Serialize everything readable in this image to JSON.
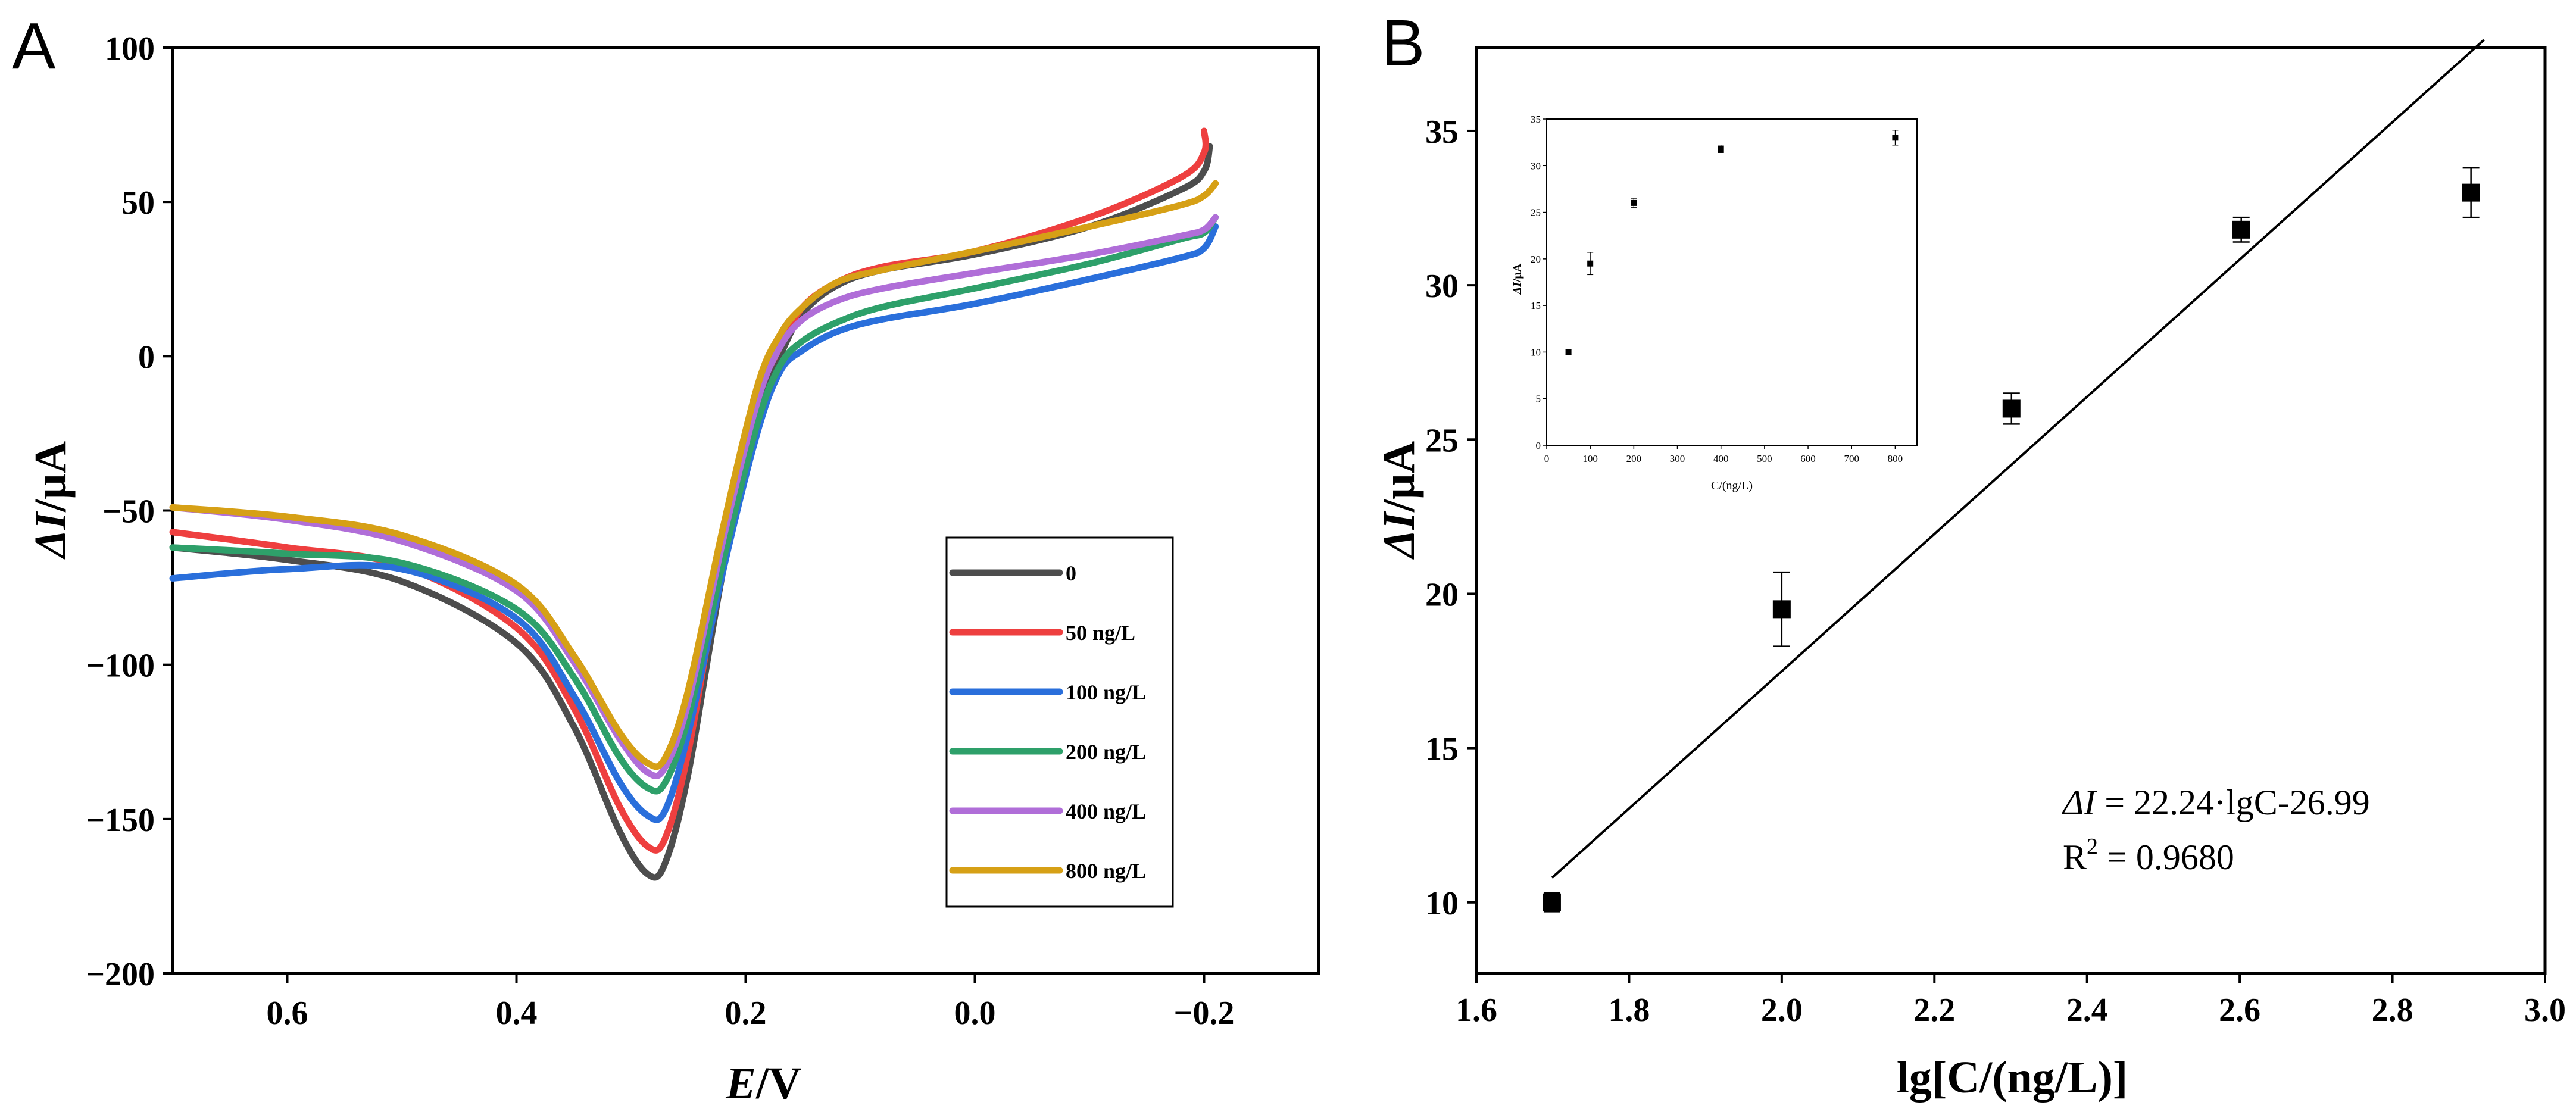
{
  "chart_data": [
    {
      "panel": "A",
      "type": "line",
      "xlabel_var": "E",
      "xlabel_unit": "/V",
      "ylabel_var": "ΔI",
      "ylabel_unit": "/μA",
      "xlim": [
        0.7,
        -0.3
      ],
      "ylim": [
        -200,
        100
      ],
      "x_reversed": true,
      "xticks": [
        0.6,
        0.4,
        0.2,
        0.0,
        -0.2
      ],
      "xtick_labels": [
        "0.6",
        "0.4",
        "0.2",
        "0.0",
        "−0.2"
      ],
      "yticks": [
        100,
        50,
        0,
        -50,
        -100,
        -150,
        -200
      ],
      "ytick_labels": [
        "100",
        "50",
        "0",
        "−50",
        "−100",
        "−150",
        "−200"
      ],
      "legend_position": "bottom-right",
      "series": [
        {
          "name": "0",
          "color": "#4d4d4d",
          "points": [
            [
              0.7,
              -62
            ],
            [
              0.6,
              -66
            ],
            [
              0.5,
              -73
            ],
            [
              0.4,
              -93
            ],
            [
              0.35,
              -120
            ],
            [
              0.31,
              -154
            ],
            [
              0.285,
              -168
            ],
            [
              0.27,
              -164
            ],
            [
              0.25,
              -135
            ],
            [
              0.22,
              -70
            ],
            [
              0.19,
              -20
            ],
            [
              0.17,
              0
            ],
            [
              0.15,
              14
            ],
            [
              0.12,
              23
            ],
            [
              0.08,
              28
            ],
            [
              0.0,
              33
            ],
            [
              -0.1,
              42
            ],
            [
              -0.18,
              54
            ],
            [
              -0.2,
              60
            ],
            [
              -0.205,
              68
            ]
          ]
        },
        {
          "name": "50 ng/L",
          "color": "#ee3f3f",
          "points": [
            [
              0.7,
              -57
            ],
            [
              0.6,
              -62
            ],
            [
              0.5,
              -68
            ],
            [
              0.4,
              -88
            ],
            [
              0.35,
              -114
            ],
            [
              0.31,
              -146
            ],
            [
              0.285,
              -159
            ],
            [
              0.27,
              -156
            ],
            [
              0.25,
              -128
            ],
            [
              0.22,
              -65
            ],
            [
              0.19,
              -15
            ],
            [
              0.17,
              3
            ],
            [
              0.15,
              16
            ],
            [
              0.12,
              24
            ],
            [
              0.08,
              29
            ],
            [
              0.0,
              34
            ],
            [
              -0.1,
              45
            ],
            [
              -0.18,
              58
            ],
            [
              -0.2,
              66
            ],
            [
              -0.2,
              73
            ]
          ]
        },
        {
          "name": "100 ng/L",
          "color": "#2a6fdb",
          "points": [
            [
              0.7,
              -72
            ],
            [
              0.6,
              -69
            ],
            [
              0.5,
              -69
            ],
            [
              0.4,
              -85
            ],
            [
              0.35,
              -110
            ],
            [
              0.31,
              -138
            ],
            [
              0.285,
              -149
            ],
            [
              0.27,
              -147
            ],
            [
              0.25,
              -122
            ],
            [
              0.22,
              -70
            ],
            [
              0.19,
              -25
            ],
            [
              0.17,
              -5
            ],
            [
              0.15,
              2
            ],
            [
              0.12,
              8
            ],
            [
              0.08,
              12
            ],
            [
              0.0,
              17
            ],
            [
              -0.1,
              25
            ],
            [
              -0.18,
              32
            ],
            [
              -0.2,
              35
            ],
            [
              -0.21,
              42
            ]
          ]
        },
        {
          "name": "200 ng/L",
          "color": "#2ea06a",
          "points": [
            [
              0.7,
              -62
            ],
            [
              0.6,
              -64
            ],
            [
              0.5,
              -67
            ],
            [
              0.4,
              -82
            ],
            [
              0.35,
              -104
            ],
            [
              0.31,
              -130
            ],
            [
              0.285,
              -140
            ],
            [
              0.27,
              -138
            ],
            [
              0.25,
              -117
            ],
            [
              0.22,
              -67
            ],
            [
              0.19,
              -22
            ],
            [
              0.17,
              -3
            ],
            [
              0.15,
              5
            ],
            [
              0.12,
              11
            ],
            [
              0.08,
              16
            ],
            [
              0.0,
              22
            ],
            [
              -0.1,
              30
            ],
            [
              -0.18,
              38
            ],
            [
              -0.2,
              40
            ],
            [
              -0.21,
              45
            ]
          ]
        },
        {
          "name": "400 ng/L",
          "color": "#b06ed8",
          "points": [
            [
              0.7,
              -49
            ],
            [
              0.6,
              -53
            ],
            [
              0.5,
              -60
            ],
            [
              0.4,
              -76
            ],
            [
              0.35,
              -99
            ],
            [
              0.31,
              -124
            ],
            [
              0.285,
              -135
            ],
            [
              0.27,
              -133
            ],
            [
              0.25,
              -112
            ],
            [
              0.22,
              -60
            ],
            [
              0.19,
              -15
            ],
            [
              0.17,
              3
            ],
            [
              0.15,
              12
            ],
            [
              0.12,
              18
            ],
            [
              0.08,
              22
            ],
            [
              0.0,
              27
            ],
            [
              -0.1,
              33
            ],
            [
              -0.18,
              39
            ],
            [
              -0.2,
              41
            ],
            [
              -0.21,
              45
            ]
          ]
        },
        {
          "name": "800 ng/L",
          "color": "#d6a016",
          "points": [
            [
              0.7,
              -49
            ],
            [
              0.6,
              -52
            ],
            [
              0.5,
              -58
            ],
            [
              0.4,
              -74
            ],
            [
              0.35,
              -97
            ],
            [
              0.31,
              -122
            ],
            [
              0.285,
              -132
            ],
            [
              0.27,
              -130
            ],
            [
              0.25,
              -108
            ],
            [
              0.22,
              -56
            ],
            [
              0.19,
              -10
            ],
            [
              0.17,
              7
            ],
            [
              0.15,
              16
            ],
            [
              0.12,
              24
            ],
            [
              0.08,
              28
            ],
            [
              0.0,
              34
            ],
            [
              -0.1,
              42
            ],
            [
              -0.18,
              49
            ],
            [
              -0.2,
              52
            ],
            [
              -0.21,
              56
            ]
          ]
        }
      ]
    },
    {
      "panel": "B",
      "type": "scatter",
      "xlabel": "lg[C/(ng/L)]",
      "ylabel_var": "ΔI",
      "ylabel_unit": "/μA",
      "xlim": [
        1.6,
        3.0
      ],
      "ylim": [
        7.7,
        37.7
      ],
      "xticks": [
        1.6,
        1.8,
        2.0,
        2.2,
        2.4,
        2.6,
        2.8,
        3.0
      ],
      "xtick_labels": [
        "1.6",
        "1.8",
        "2.0",
        "2.2",
        "2.4",
        "2.6",
        "2.8",
        "3.0"
      ],
      "yticks": [
        10,
        15,
        20,
        25,
        30,
        35
      ],
      "ytick_labels": [
        "10",
        "15",
        "20",
        "25",
        "30",
        "35"
      ],
      "points": [
        {
          "x": 1.699,
          "y": 10.0,
          "err": 0.3
        },
        {
          "x": 2.0,
          "y": 19.5,
          "err": 1.2
        },
        {
          "x": 2.301,
          "y": 26.0,
          "err": 0.5
        },
        {
          "x": 2.602,
          "y": 31.8,
          "err": 0.4
        },
        {
          "x": 2.903,
          "y": 33.0,
          "err": 0.8
        }
      ],
      "fit": {
        "slope": 22.24,
        "intercept": -26.99,
        "x_start": 1.699,
        "x_end": 2.92
      },
      "equation_var": "ΔI",
      "equation_rest": " = 22.24·lgC-26.99",
      "r2_prefix": "R",
      "r2_sup": "2",
      "r2_value": " = 0.9680",
      "inset": {
        "type": "scatter",
        "xlabel": "C/(ng/L)",
        "ylabel_var": "ΔI",
        "ylabel_unit": "/μA",
        "xlim": [
          0,
          850
        ],
        "ylim": [
          0,
          35
        ],
        "xticks": [
          0,
          100,
          200,
          300,
          400,
          500,
          600,
          700,
          800
        ],
        "xtick_labels": [
          "0",
          "100",
          "200",
          "300",
          "400",
          "500",
          "600",
          "700",
          "800"
        ],
        "yticks": [
          0,
          5,
          10,
          15,
          20,
          25,
          30,
          35
        ],
        "ytick_labels": [
          "0",
          "5",
          "10",
          "15",
          "20",
          "25",
          "30",
          "35"
        ],
        "points": [
          {
            "x": 50,
            "y": 10.0,
            "err": 0.3
          },
          {
            "x": 100,
            "y": 19.5,
            "err": 1.2
          },
          {
            "x": 200,
            "y": 26.0,
            "err": 0.5
          },
          {
            "x": 400,
            "y": 31.8,
            "err": 0.4
          },
          {
            "x": 800,
            "y": 33.0,
            "err": 0.8
          }
        ]
      }
    }
  ],
  "panel_labels": {
    "a": "A",
    "b": "B"
  }
}
